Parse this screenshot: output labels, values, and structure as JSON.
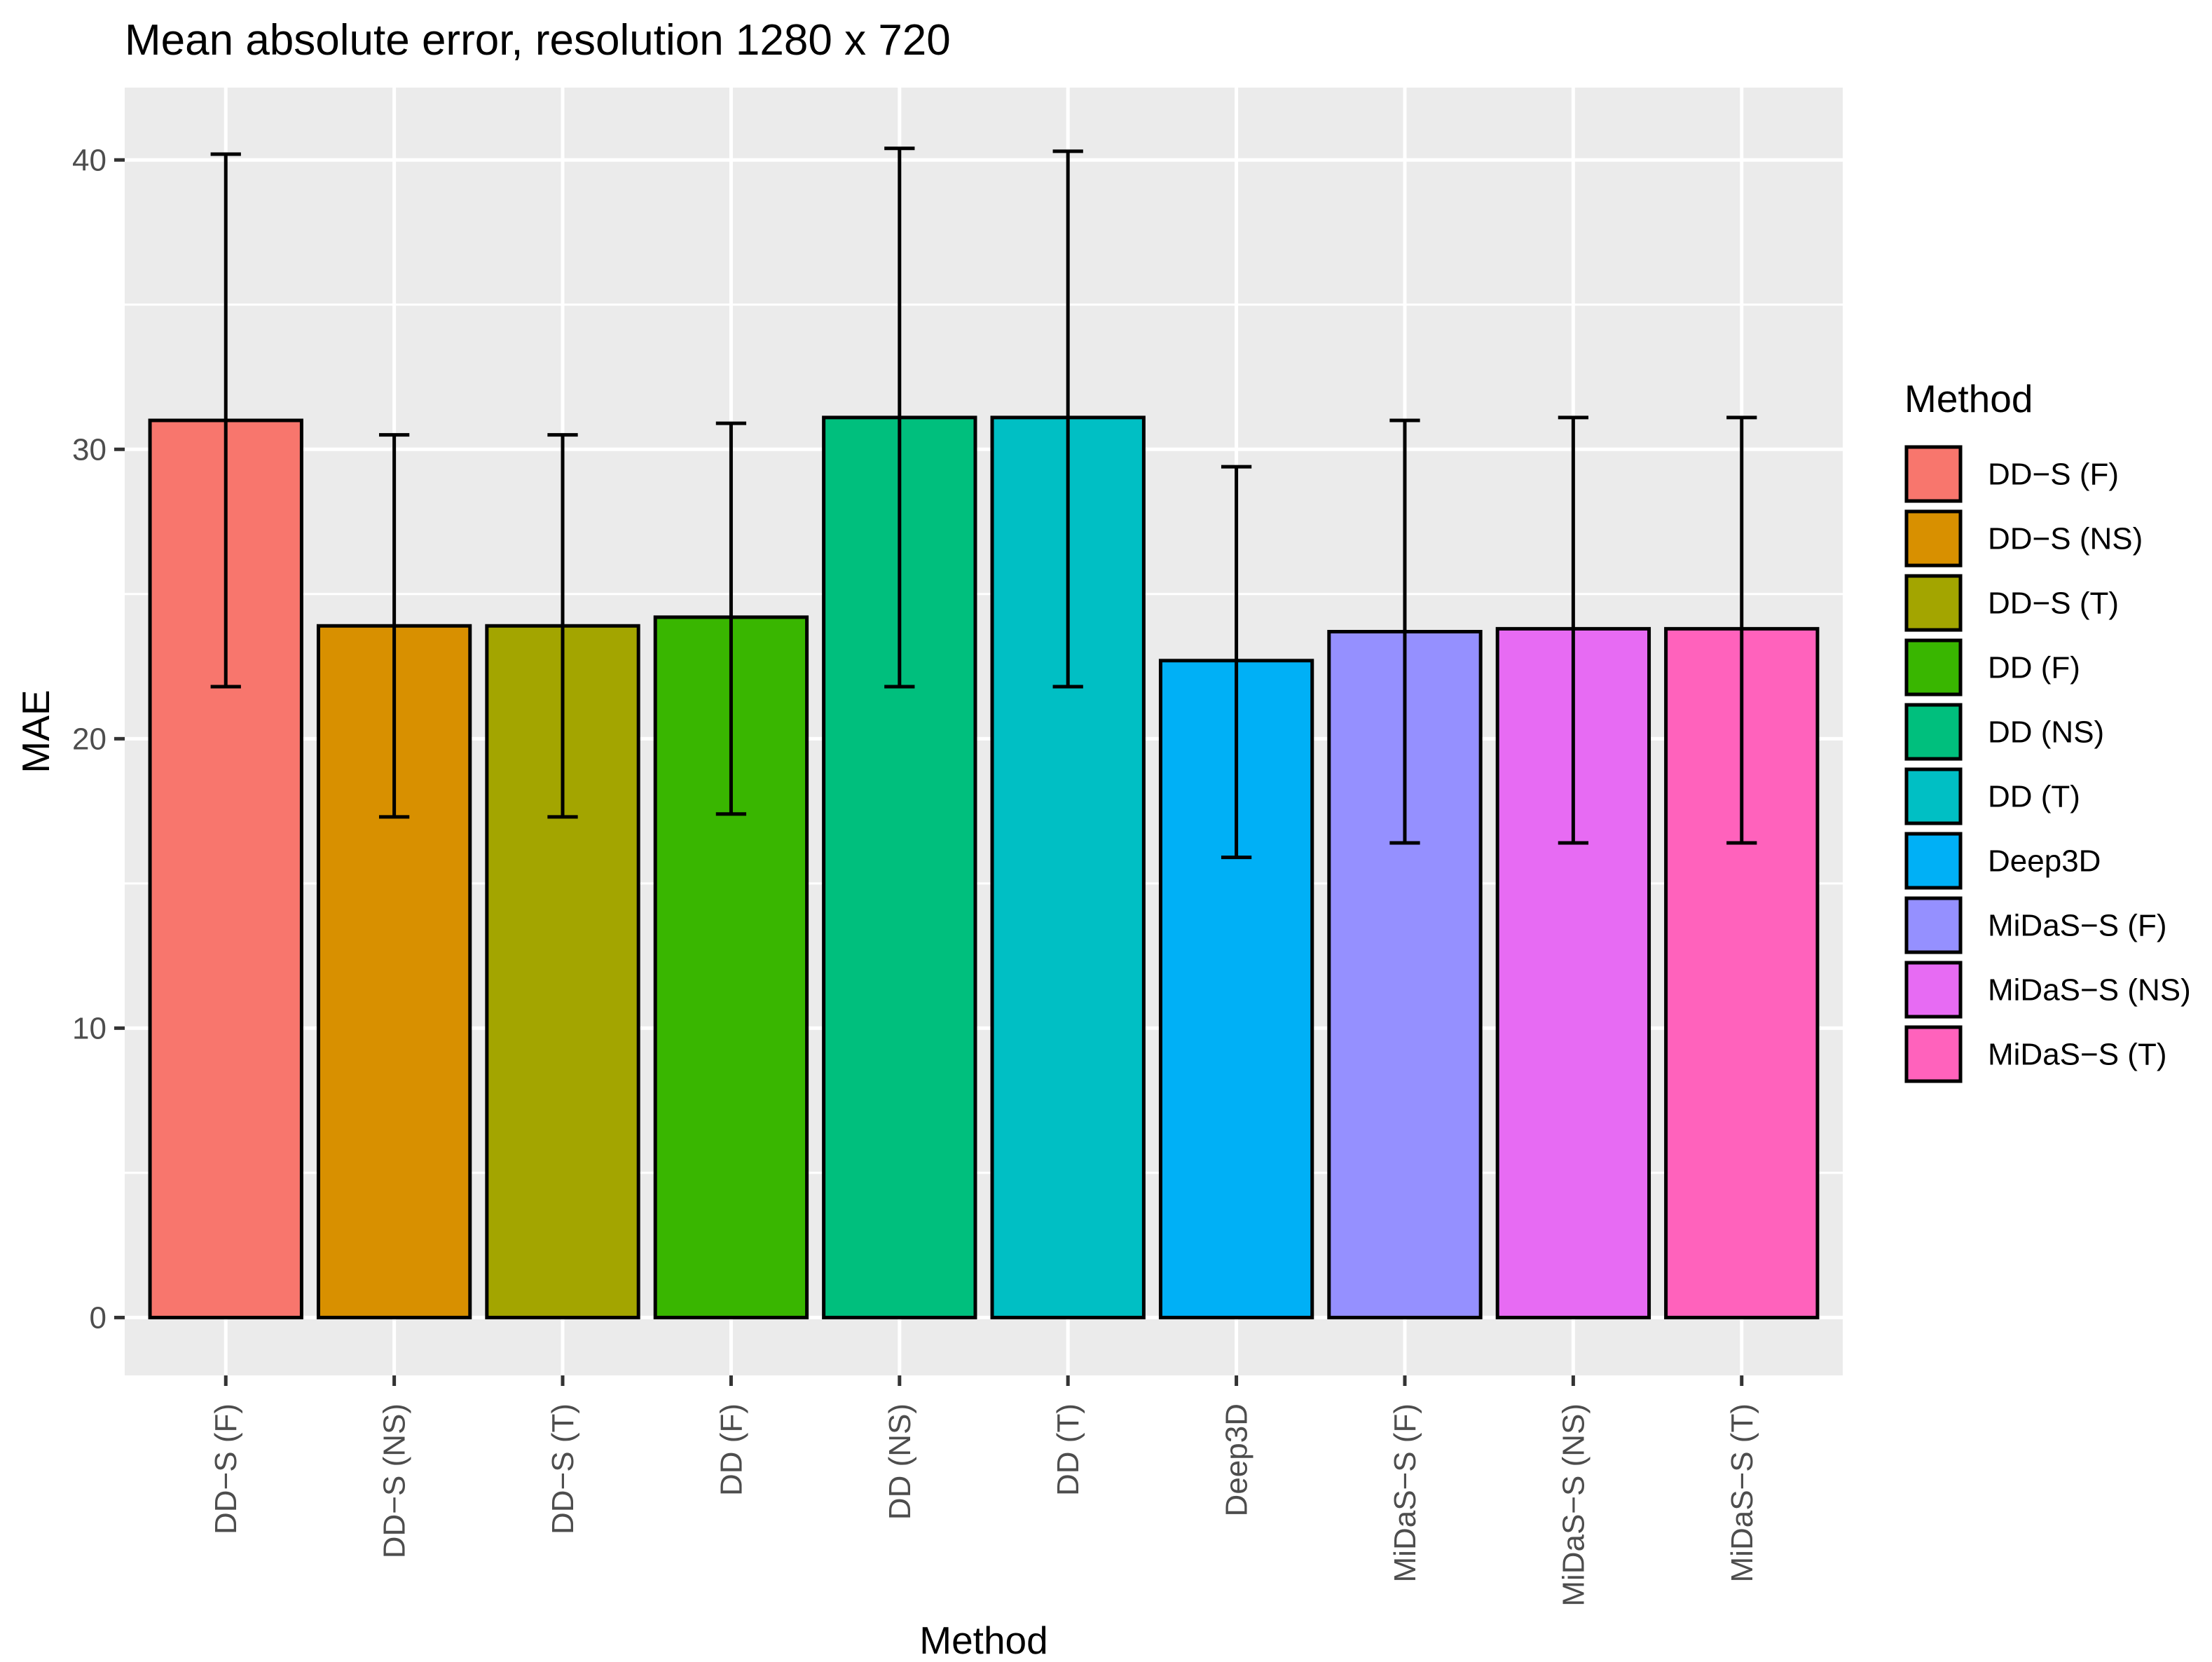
{
  "chart_data": {
    "type": "bar",
    "title": "Mean absolute error, resolution 1280 x 720",
    "xlabel": "Method",
    "ylabel": "MAE",
    "ylim": [
      -2,
      42.5
    ],
    "yticks": [
      0,
      10,
      20,
      30,
      40
    ],
    "grid": true,
    "legend": {
      "title": "Method",
      "position": "right"
    },
    "categories": [
      "DD−S (F)",
      "DD−S (NS)",
      "DD−S (T)",
      "DD (F)",
      "DD (NS)",
      "DD (T)",
      "Deep3D",
      "MiDaS−S (F)",
      "MiDaS−S (NS)",
      "MiDaS−S (T)"
    ],
    "values": [
      31.0,
      23.9,
      23.9,
      24.2,
      31.1,
      31.1,
      22.7,
      23.7,
      23.8,
      23.8
    ],
    "error_low": [
      21.8,
      17.3,
      17.3,
      17.4,
      21.8,
      21.8,
      15.9,
      16.4,
      16.4,
      16.4
    ],
    "error_high": [
      40.2,
      30.5,
      30.5,
      30.9,
      40.4,
      40.3,
      29.4,
      31.0,
      31.1,
      31.1
    ],
    "colors": [
      "#F8766D",
      "#D89000",
      "#A3A500",
      "#39B600",
      "#00BF7D",
      "#00BFC4",
      "#00B0F6",
      "#9590FF",
      "#E76BF3",
      "#FF62BC"
    ]
  }
}
